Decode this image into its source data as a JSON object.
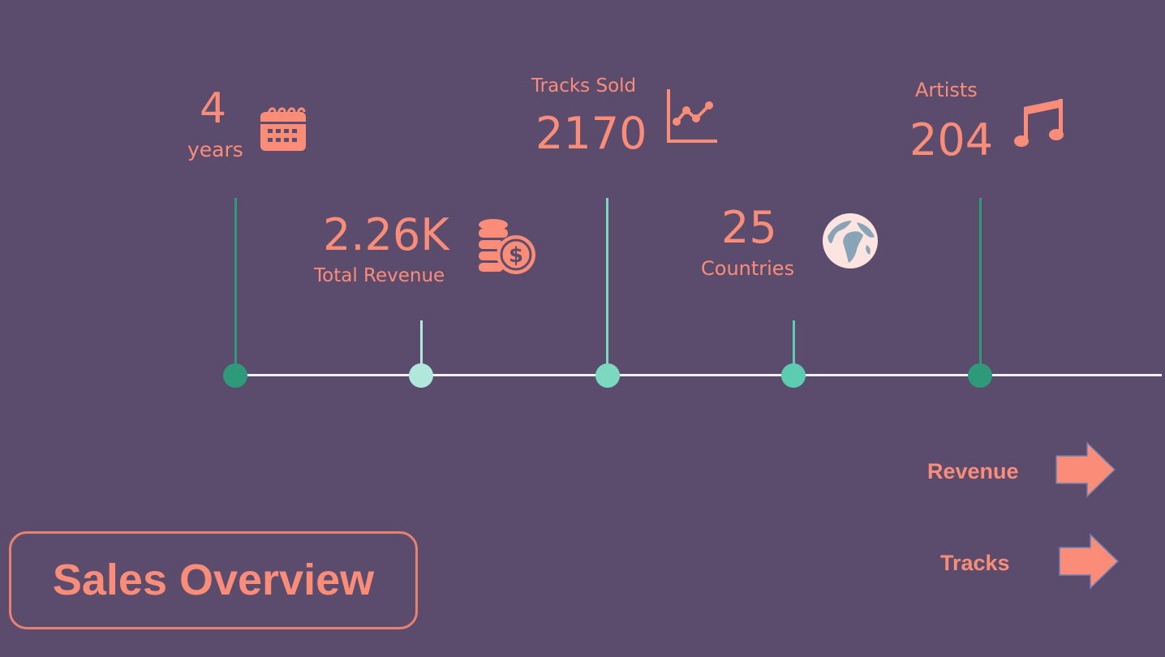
{
  "timeline": {
    "years": {
      "value": "4",
      "label": "years",
      "icon": "calendar-icon"
    },
    "revenue": {
      "value": "2.26K",
      "label": "Total Revenue",
      "icon": "coins-dollar-icon"
    },
    "tracks": {
      "label": "Tracks Sold",
      "value": "2170",
      "icon": "line-chart-icon"
    },
    "countries": {
      "value": "25",
      "label": "Countries",
      "icon": "globe-icon"
    },
    "artists": {
      "label": "Artists",
      "value": "204",
      "icon": "music-note-icon"
    }
  },
  "nav": {
    "revenue_label": "Revenue",
    "tracks_label": "Tracks"
  },
  "title": "Sales Overview",
  "colors": {
    "background": "#5b4c6e",
    "accent": "#fa8c78",
    "dark_green": "#2e9a7a",
    "light_mint": "#b2e8dc",
    "mint": "#7dd8c0",
    "teal": "#5ccdb0",
    "line": "#ffffff"
  }
}
